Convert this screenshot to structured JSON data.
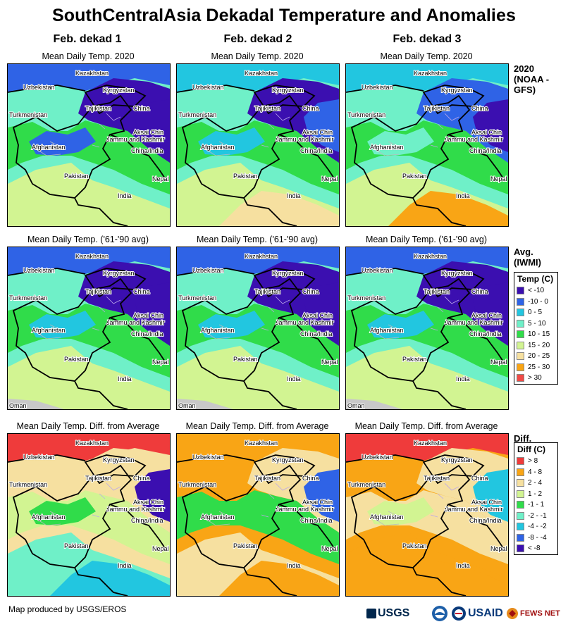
{
  "title": "SouthCentralAsia Dekadal Temperature and Anomalies",
  "columns": [
    {
      "label": "Feb. dekad 1"
    },
    {
      "label": "Feb. dekad 2"
    },
    {
      "label": "Feb. dekad 3"
    }
  ],
  "rows": [
    {
      "caption": "Mean Daily Temp. 2020",
      "label": "2020 (NOAA -GFS)"
    },
    {
      "caption": "Mean Daily Temp. ('61-'90 avg)",
      "label": "Avg. (IWMI)"
    },
    {
      "caption": "Mean Daily Temp. Diff. from Average",
      "label": "Diff."
    }
  ],
  "map_labels": {
    "kazakhstan": "Kazakhstan",
    "uzbekistan": "Uzbekistan",
    "kyrgyzstan": "Kyrgyzstan",
    "tajikistan": "Tajikistan",
    "turkmenistan": "Turkmenistan",
    "china": "China",
    "aksai_chin": "Aksai Chin",
    "jammu_kashmir": "Jammu and Kashmir",
    "china_india": "China/India",
    "afghanistan": "Afghanistan",
    "pakistan": "Pakistan",
    "nepal": "Nepal",
    "india": "India",
    "oman": "Oman"
  },
  "legend_temp": {
    "title": "Temp (C)",
    "items": [
      {
        "label": "< -10",
        "color": "#3b0fb0"
      },
      {
        "label": "-10 - 0",
        "color": "#2f63e6"
      },
      {
        "label": "0 - 5",
        "color": "#22c6e0"
      },
      {
        "label": "5 - 10",
        "color": "#6ff0c8"
      },
      {
        "label": "10 - 15",
        "color": "#30dc4a"
      },
      {
        "label": "15 - 20",
        "color": "#d2f492"
      },
      {
        "label": "20 - 25",
        "color": "#f6e0a0"
      },
      {
        "label": "25 - 30",
        "color": "#f9a515"
      },
      {
        "label": "> 30",
        "color": "#f04a46"
      }
    ]
  },
  "legend_diff": {
    "title": "Diff (C)",
    "items": [
      {
        "label": "> 8",
        "color": "#ef3b3b"
      },
      {
        "label": "4 - 8",
        "color": "#f9a515"
      },
      {
        "label": "2 - 4",
        "color": "#f6e0a0"
      },
      {
        "label": "1 - 2",
        "color": "#d2f492"
      },
      {
        "label": "-1 - 1",
        "color": "#30dc4a"
      },
      {
        "label": "-2 - -1",
        "color": "#6ff0c8"
      },
      {
        "label": "-4 - -2",
        "color": "#22c6e0"
      },
      {
        "label": "-8 - -4",
        "color": "#2f63e6"
      },
      {
        "label": "< -8",
        "color": "#3b0fb0"
      }
    ]
  },
  "footer": "Map produced by USGS/EROS",
  "logos": {
    "usgs": "USGS",
    "usaid": "USAID",
    "fews": "FEWS NET"
  }
}
